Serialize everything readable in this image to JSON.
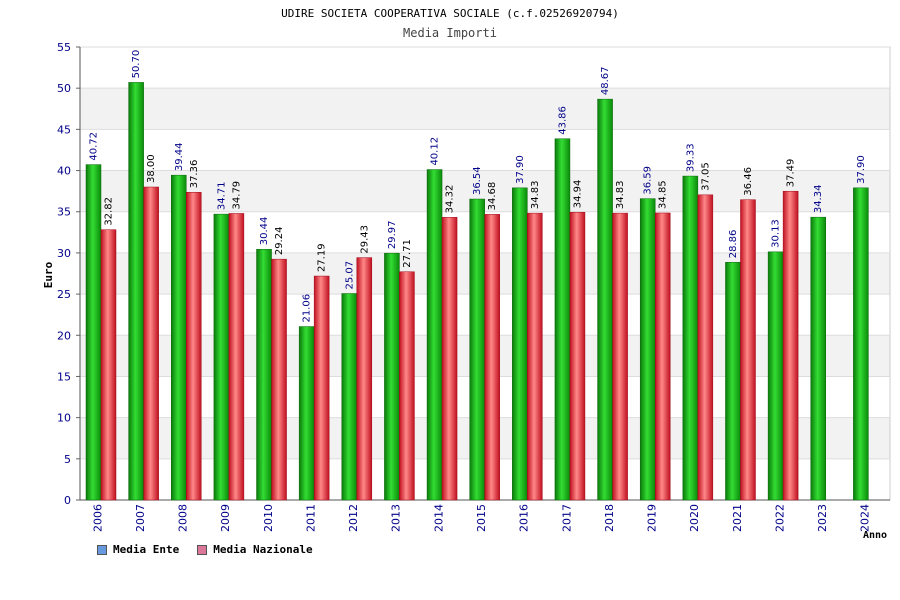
{
  "chart_data": {
    "type": "bar",
    "title": "UDIRE SOCIETA COOPERATIVA SOCIALE (c.f.02526920794)",
    "subtitle": "Media Importi",
    "xlabel": "Anno",
    "ylabel": "Euro",
    "ylim": [
      0,
      55
    ],
    "yticks": [
      0,
      5,
      10,
      15,
      20,
      25,
      30,
      35,
      40,
      45,
      50,
      55
    ],
    "categories": [
      "2006",
      "2007",
      "2008",
      "2009",
      "2010",
      "2011",
      "2012",
      "2013",
      "2014",
      "2015",
      "2016",
      "2017",
      "2018",
      "2019",
      "2020",
      "2021",
      "2022",
      "2023",
      "2024"
    ],
    "series": [
      {
        "name": "Media Ente",
        "color": "#22aa22",
        "values": [
          40.72,
          50.7,
          39.44,
          34.71,
          30.44,
          21.06,
          25.07,
          29.97,
          40.12,
          36.54,
          37.9,
          43.86,
          48.67,
          36.59,
          39.33,
          28.86,
          30.13,
          34.34,
          37.9
        ],
        "labels": [
          "40.72",
          "50.70",
          "39.44",
          "34.71",
          "30.44",
          "21.06",
          "25.07",
          "29.97",
          "40.12",
          "36.54",
          "37.90",
          "43.86",
          "48.67",
          "36.59",
          "39.33",
          "28.86",
          "30.13",
          "34.34",
          "37.90"
        ]
      },
      {
        "name": "Media Nazionale",
        "color": "#dd2233",
        "values": [
          32.82,
          38.0,
          37.36,
          34.79,
          29.24,
          27.19,
          29.43,
          27.71,
          34.32,
          34.68,
          34.83,
          34.94,
          34.83,
          34.85,
          37.05,
          36.46,
          37.49,
          null,
          null
        ],
        "labels": [
          "32.82",
          "38.00",
          "37.36",
          "34.79",
          "29.24",
          "27.19",
          "29.43",
          "27.71",
          "34.32",
          "34.68",
          "34.83",
          "34.94",
          "34.83",
          "34.85",
          "37.05",
          "36.46",
          "37.49",
          null,
          null
        ]
      }
    ],
    "legend": [
      {
        "label": "Media Ente",
        "color": "#6699dd"
      },
      {
        "label": "Media Nazionale",
        "color": "#dd7799"
      }
    ]
  }
}
